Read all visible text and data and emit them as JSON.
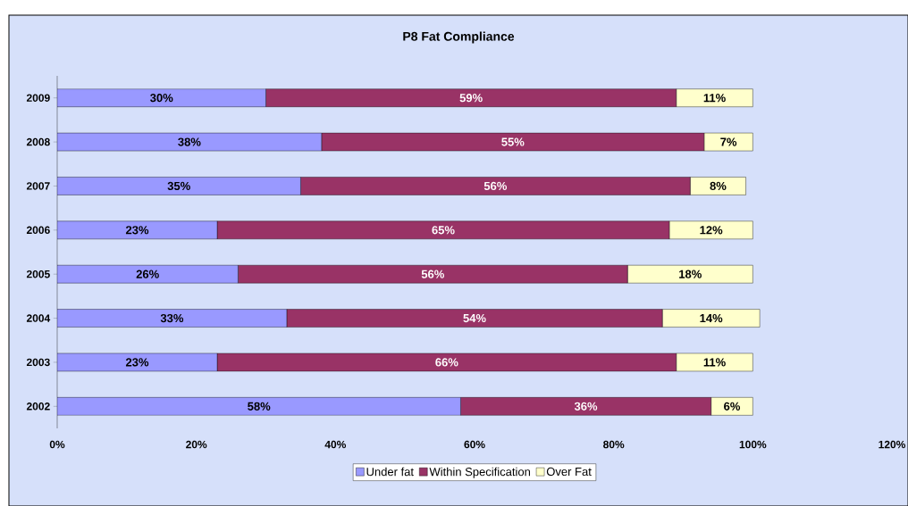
{
  "chart_data": {
    "type": "bar",
    "orientation": "horizontal",
    "stacked": true,
    "title": "P8 Fat Compliance",
    "categories": [
      "2009",
      "2008",
      "2007",
      "2006",
      "2005",
      "2004",
      "2003",
      "2002"
    ],
    "series": [
      {
        "name": "Under fat",
        "color": "#9999ff",
        "values": [
          30,
          38,
          35,
          23,
          26,
          33,
          23,
          58
        ],
        "value_labels": [
          "30%",
          "38%",
          "35%",
          "23%",
          "26%",
          "33%",
          "23%",
          "58%"
        ]
      },
      {
        "name": "Within Specification",
        "color": "#993366",
        "values": [
          59,
          55,
          56,
          65,
          56,
          54,
          66,
          36
        ],
        "value_labels": [
          "59%",
          "55%",
          "56%",
          "65%",
          "56%",
          "54%",
          "66%",
          "36%"
        ]
      },
      {
        "name": "Over Fat",
        "color": "#ffffcc",
        "values": [
          11,
          7,
          8,
          12,
          18,
          14,
          11,
          6
        ],
        "value_labels": [
          "11%",
          "7%",
          "8%",
          "12%",
          "18%",
          "14%",
          "11%",
          "6%"
        ]
      }
    ],
    "xlim": [
      0,
      120
    ],
    "xticks": [
      {
        "value": 0,
        "label": "0%"
      },
      {
        "value": 20,
        "label": "20%"
      },
      {
        "value": 40,
        "label": "40%"
      },
      {
        "value": 60,
        "label": "60%"
      },
      {
        "value": 80,
        "label": "80%"
      },
      {
        "value": 100,
        "label": "100%"
      },
      {
        "value": 120,
        "label": "120%"
      }
    ],
    "grid": false,
    "legend": "bottom"
  }
}
